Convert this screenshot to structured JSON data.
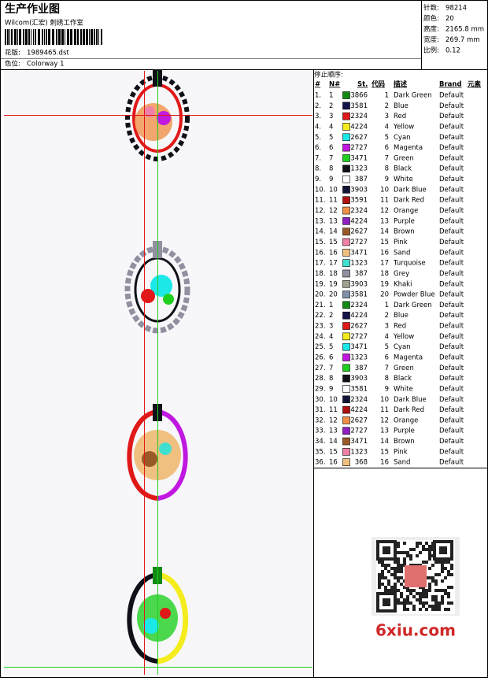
{
  "header": {
    "title": "生产作业图",
    "studio": "Wilcom(汇宏) 刺绣工作室",
    "design_label": "花版:",
    "design": "1989465.dst",
    "colorway_label": "色位:",
    "colorway": "Colorway 1",
    "stats": [
      {
        "label": "针数:",
        "value": "98214"
      },
      {
        "label": "颜色:",
        "value": "20"
      },
      {
        "label": "高度:",
        "value": "2165.8 mm"
      },
      {
        "label": "宽度:",
        "value": "269.7 mm"
      },
      {
        "label": "比例:",
        "value": "0.12"
      }
    ]
  },
  "table": {
    "title": "停止顺序:",
    "columns": [
      "#",
      "N#",
      "St.",
      "代码",
      "描述",
      "Brand",
      "元素"
    ],
    "rows": [
      [
        "1.",
        "1",
        "#138a13",
        "3866",
        "1",
        "Dark Green",
        "Default"
      ],
      [
        "2.",
        "2",
        "#14144a",
        "3581",
        "2",
        "Blue",
        "Default"
      ],
      [
        "3.",
        "3",
        "#e01818",
        "2324",
        "3",
        "Red",
        "Default"
      ],
      [
        "4.",
        "4",
        "#f4ec1c",
        "4224",
        "4",
        "Yellow",
        "Default"
      ],
      [
        "5.",
        "5",
        "#1ce8e8",
        "2627",
        "5",
        "Cyan",
        "Default"
      ],
      [
        "6.",
        "6",
        "#c018e0",
        "2727",
        "6",
        "Magenta",
        "Default"
      ],
      [
        "7.",
        "7",
        "#20d020",
        "3471",
        "7",
        "Green",
        "Default"
      ],
      [
        "8.",
        "8",
        "#101018",
        "1323",
        "8",
        "Black",
        "Default"
      ],
      [
        "9.",
        "9",
        "#ffffff",
        "387",
        "9",
        "White",
        "Default"
      ],
      [
        "10.",
        "10",
        "#141438",
        "3903",
        "10",
        "Dark Blue",
        "Default"
      ],
      [
        "11.",
        "11",
        "#b01010",
        "3591",
        "11",
        "Dark Red",
        "Default"
      ],
      [
        "12.",
        "12",
        "#f09048",
        "2324",
        "12",
        "Orange",
        "Default"
      ],
      [
        "13.",
        "13",
        "#9020c0",
        "4224",
        "13",
        "Purple",
        "Default"
      ],
      [
        "14.",
        "14",
        "#9a5a28",
        "2627",
        "14",
        "Brown",
        "Default"
      ],
      [
        "15.",
        "15",
        "#f080a8",
        "2727",
        "15",
        "Pink",
        "Default"
      ],
      [
        "16.",
        "16",
        "#f0c080",
        "3471",
        "16",
        "Sand",
        "Default"
      ],
      [
        "17.",
        "17",
        "#40e0d0",
        "1323",
        "17",
        "Turquoise",
        "Default"
      ],
      [
        "18.",
        "18",
        "#9090a0",
        "387",
        "18",
        "Grey",
        "Default"
      ],
      [
        "19.",
        "19",
        "#a0a090",
        "3903",
        "19",
        "Khaki",
        "Default"
      ],
      [
        "20.",
        "20",
        "#8090a8",
        "3581",
        "20",
        "Powder Blue",
        "Default"
      ],
      [
        "21.",
        "1",
        "#138a13",
        "2324",
        "1",
        "Dark Green",
        "Default"
      ],
      [
        "22.",
        "2",
        "#14144a",
        "4224",
        "2",
        "Blue",
        "Default"
      ],
      [
        "23.",
        "3",
        "#e01818",
        "2627",
        "3",
        "Red",
        "Default"
      ],
      [
        "24.",
        "4",
        "#f4ec1c",
        "2727",
        "4",
        "Yellow",
        "Default"
      ],
      [
        "25.",
        "5",
        "#1ce8e8",
        "3471",
        "5",
        "Cyan",
        "Default"
      ],
      [
        "26.",
        "6",
        "#c018e0",
        "1323",
        "6",
        "Magenta",
        "Default"
      ],
      [
        "27.",
        "7",
        "#20d020",
        "387",
        "7",
        "Green",
        "Default"
      ],
      [
        "28.",
        "8",
        "#101018",
        "3903",
        "8",
        "Black",
        "Default"
      ],
      [
        "29.",
        "9",
        "#ffffff",
        "3581",
        "9",
        "White",
        "Default"
      ],
      [
        "30.",
        "10",
        "#141438",
        "2324",
        "10",
        "Dark Blue",
        "Default"
      ],
      [
        "31.",
        "11",
        "#b01010",
        "4224",
        "11",
        "Dark Red",
        "Default"
      ],
      [
        "32.",
        "12",
        "#f09048",
        "2627",
        "12",
        "Orange",
        "Default"
      ],
      [
        "33.",
        "13",
        "#9020c0",
        "2727",
        "13",
        "Purple",
        "Default"
      ],
      [
        "34.",
        "14",
        "#9a5a28",
        "3471",
        "14",
        "Brown",
        "Default"
      ],
      [
        "35.",
        "15",
        "#f080a8",
        "1323",
        "15",
        "Pink",
        "Default"
      ],
      [
        "36.",
        "16",
        "#f0c080",
        "368",
        "16",
        "Sand",
        "Default"
      ]
    ]
  },
  "watermark": "6xiu.com"
}
